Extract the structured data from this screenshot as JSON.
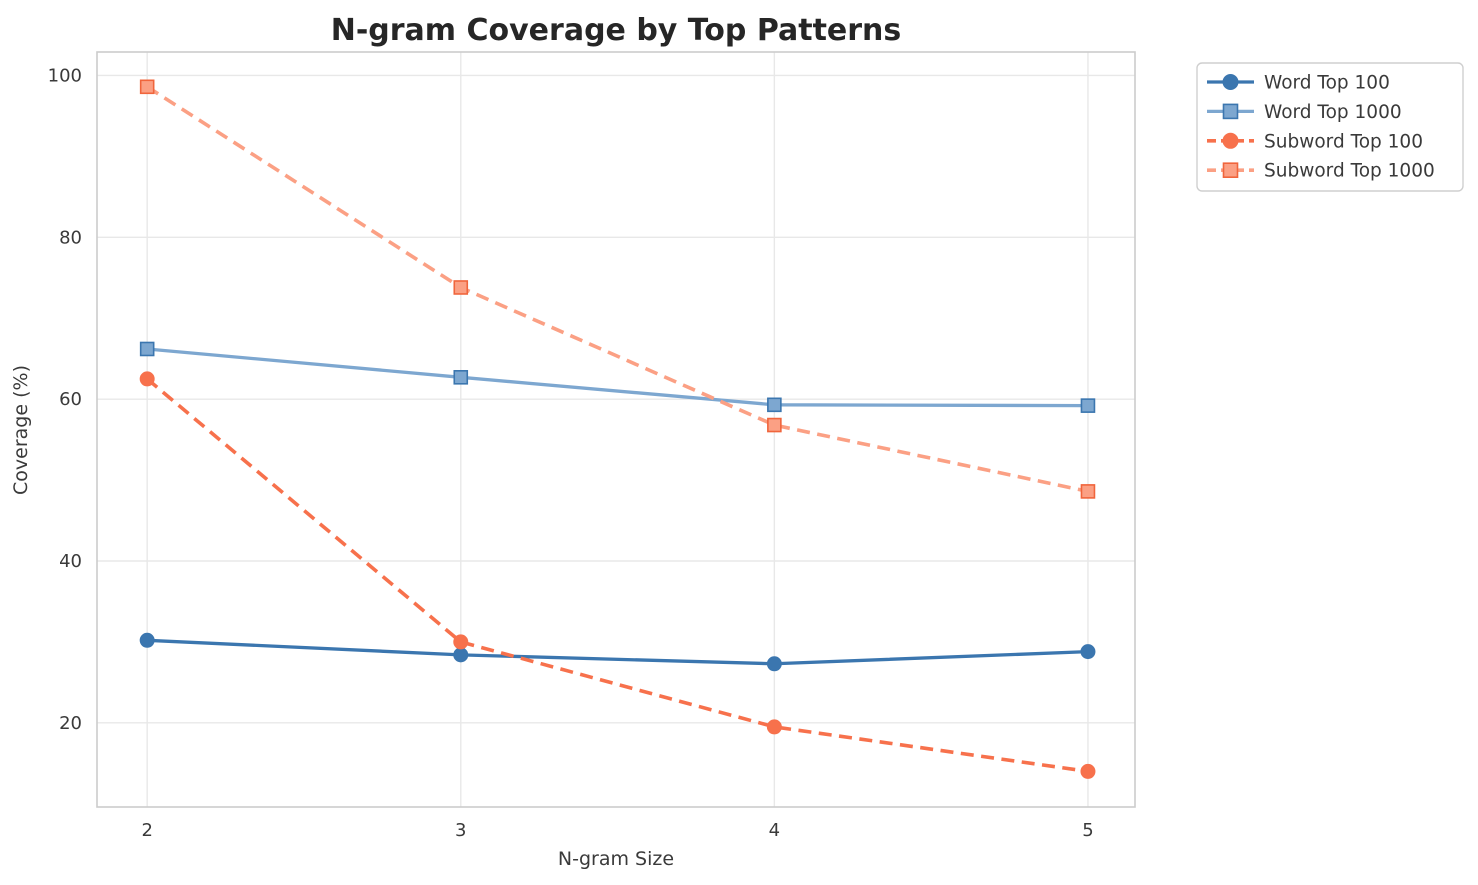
{
  "chart_data": {
    "type": "line",
    "title": "N-gram Coverage by Top Patterns",
    "xlabel": "N-gram Size",
    "ylabel": "Coverage (%)",
    "x": [
      2,
      3,
      4,
      5
    ],
    "x_tick_labels": [
      "2",
      "3",
      "4",
      "5"
    ],
    "y_ticks": [
      20,
      40,
      60,
      80,
      100
    ],
    "y_tick_labels": [
      "20",
      "40",
      "60",
      "80",
      "100"
    ],
    "xlim": [
      1.84,
      5.15
    ],
    "ylim": [
      9.6,
      102.9
    ],
    "grid": true,
    "legend_position": "upper-right-outside",
    "series": [
      {
        "name": "Word Top 100",
        "values": [
          30.2,
          28.4,
          27.3,
          28.8
        ],
        "color": "#3b76af",
        "marker": "circle",
        "marker_edge": "#3b76af",
        "line_style": "solid"
      },
      {
        "name": "Word Top 1000",
        "values": [
          66.2,
          62.7,
          59.3,
          59.2
        ],
        "color": "#7da7d0",
        "marker": "square",
        "marker_edge": "#3b76af",
        "line_style": "solid"
      },
      {
        "name": "Subword Top 100",
        "values": [
          62.5,
          30.0,
          19.5,
          14.0
        ],
        "color": "#f7714c",
        "marker": "circle",
        "marker_edge": "#f7714c",
        "line_style": "dashed"
      },
      {
        "name": "Subword Top 1000",
        "values": [
          98.6,
          73.8,
          56.8,
          48.6
        ],
        "color": "#fba084",
        "marker": "square",
        "marker_edge": "#f0653c",
        "line_style": "dashed"
      }
    ],
    "colors": {
      "title_text": "#262626",
      "axis_text": "#3a3a3a",
      "tick_text": "#3a3a3a",
      "grid_line": "#e8e8e8",
      "axes_border": "#cccccc",
      "legend_border": "#cfcfcf",
      "legend_background": "#ffffff"
    }
  }
}
